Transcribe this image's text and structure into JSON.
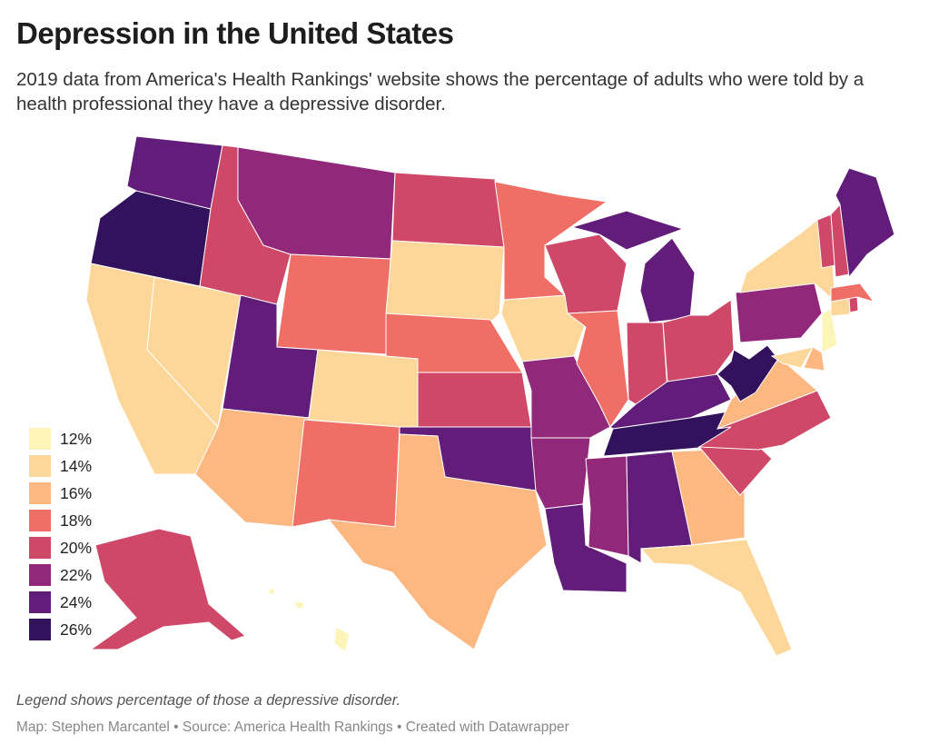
{
  "header": {
    "title": "Depression in the United States",
    "subtitle": "2019 data from America's Health Rankings' website shows the percentage of adults who were told by a health professional they have a depressive disorder."
  },
  "legend": [
    {
      "label": "12%",
      "value": 12,
      "color": "#fdf5b8"
    },
    {
      "label": "14%",
      "value": 14,
      "color": "#fdd79a"
    },
    {
      "label": "16%",
      "value": 16,
      "color": "#fdb882"
    },
    {
      "label": "18%",
      "value": 18,
      "color": "#ef6f66"
    },
    {
      "label": "20%",
      "value": 20,
      "color": "#cf4868"
    },
    {
      "label": "22%",
      "value": 22,
      "color": "#922879"
    },
    {
      "label": "24%",
      "value": 24,
      "color": "#621c79"
    },
    {
      "label": "26%",
      "value": 26,
      "color": "#32125c"
    }
  ],
  "states": {
    "WA": 24,
    "OR": 26,
    "CA": 14,
    "NV": 14,
    "ID": 20,
    "MT": 22,
    "WY": 18,
    "UT": 24,
    "CO": 14,
    "AZ": 16,
    "NM": 18,
    "ND": 20,
    "SD": 14,
    "NE": 18,
    "KS": 20,
    "OK": 24,
    "TX": 16,
    "MN": 18,
    "IA": 14,
    "MO": 22,
    "AR": 22,
    "LA": 24,
    "WI": 20,
    "IL": 18,
    "MI": 24,
    "IN": 20,
    "OH": 20,
    "KY": 24,
    "TN": 26,
    "MS": 22,
    "AL": 24,
    "GA": 16,
    "FL": 14,
    "SC": 20,
    "NC": 20,
    "VA": 16,
    "WV": 26,
    "PA": 22,
    "NY": 14,
    "NJ": 12,
    "MD": 14,
    "DE": 16,
    "CT": 14,
    "RI": 20,
    "MA": 18,
    "VT": 20,
    "NH": 20,
    "ME": 24,
    "AK": 20,
    "HI": 12
  },
  "notes": "Legend shows percentage of those a depressive disorder.",
  "footer": "Map: Stephen Marcantel • Source: America Health Rankings • Created with Datawrapper"
}
